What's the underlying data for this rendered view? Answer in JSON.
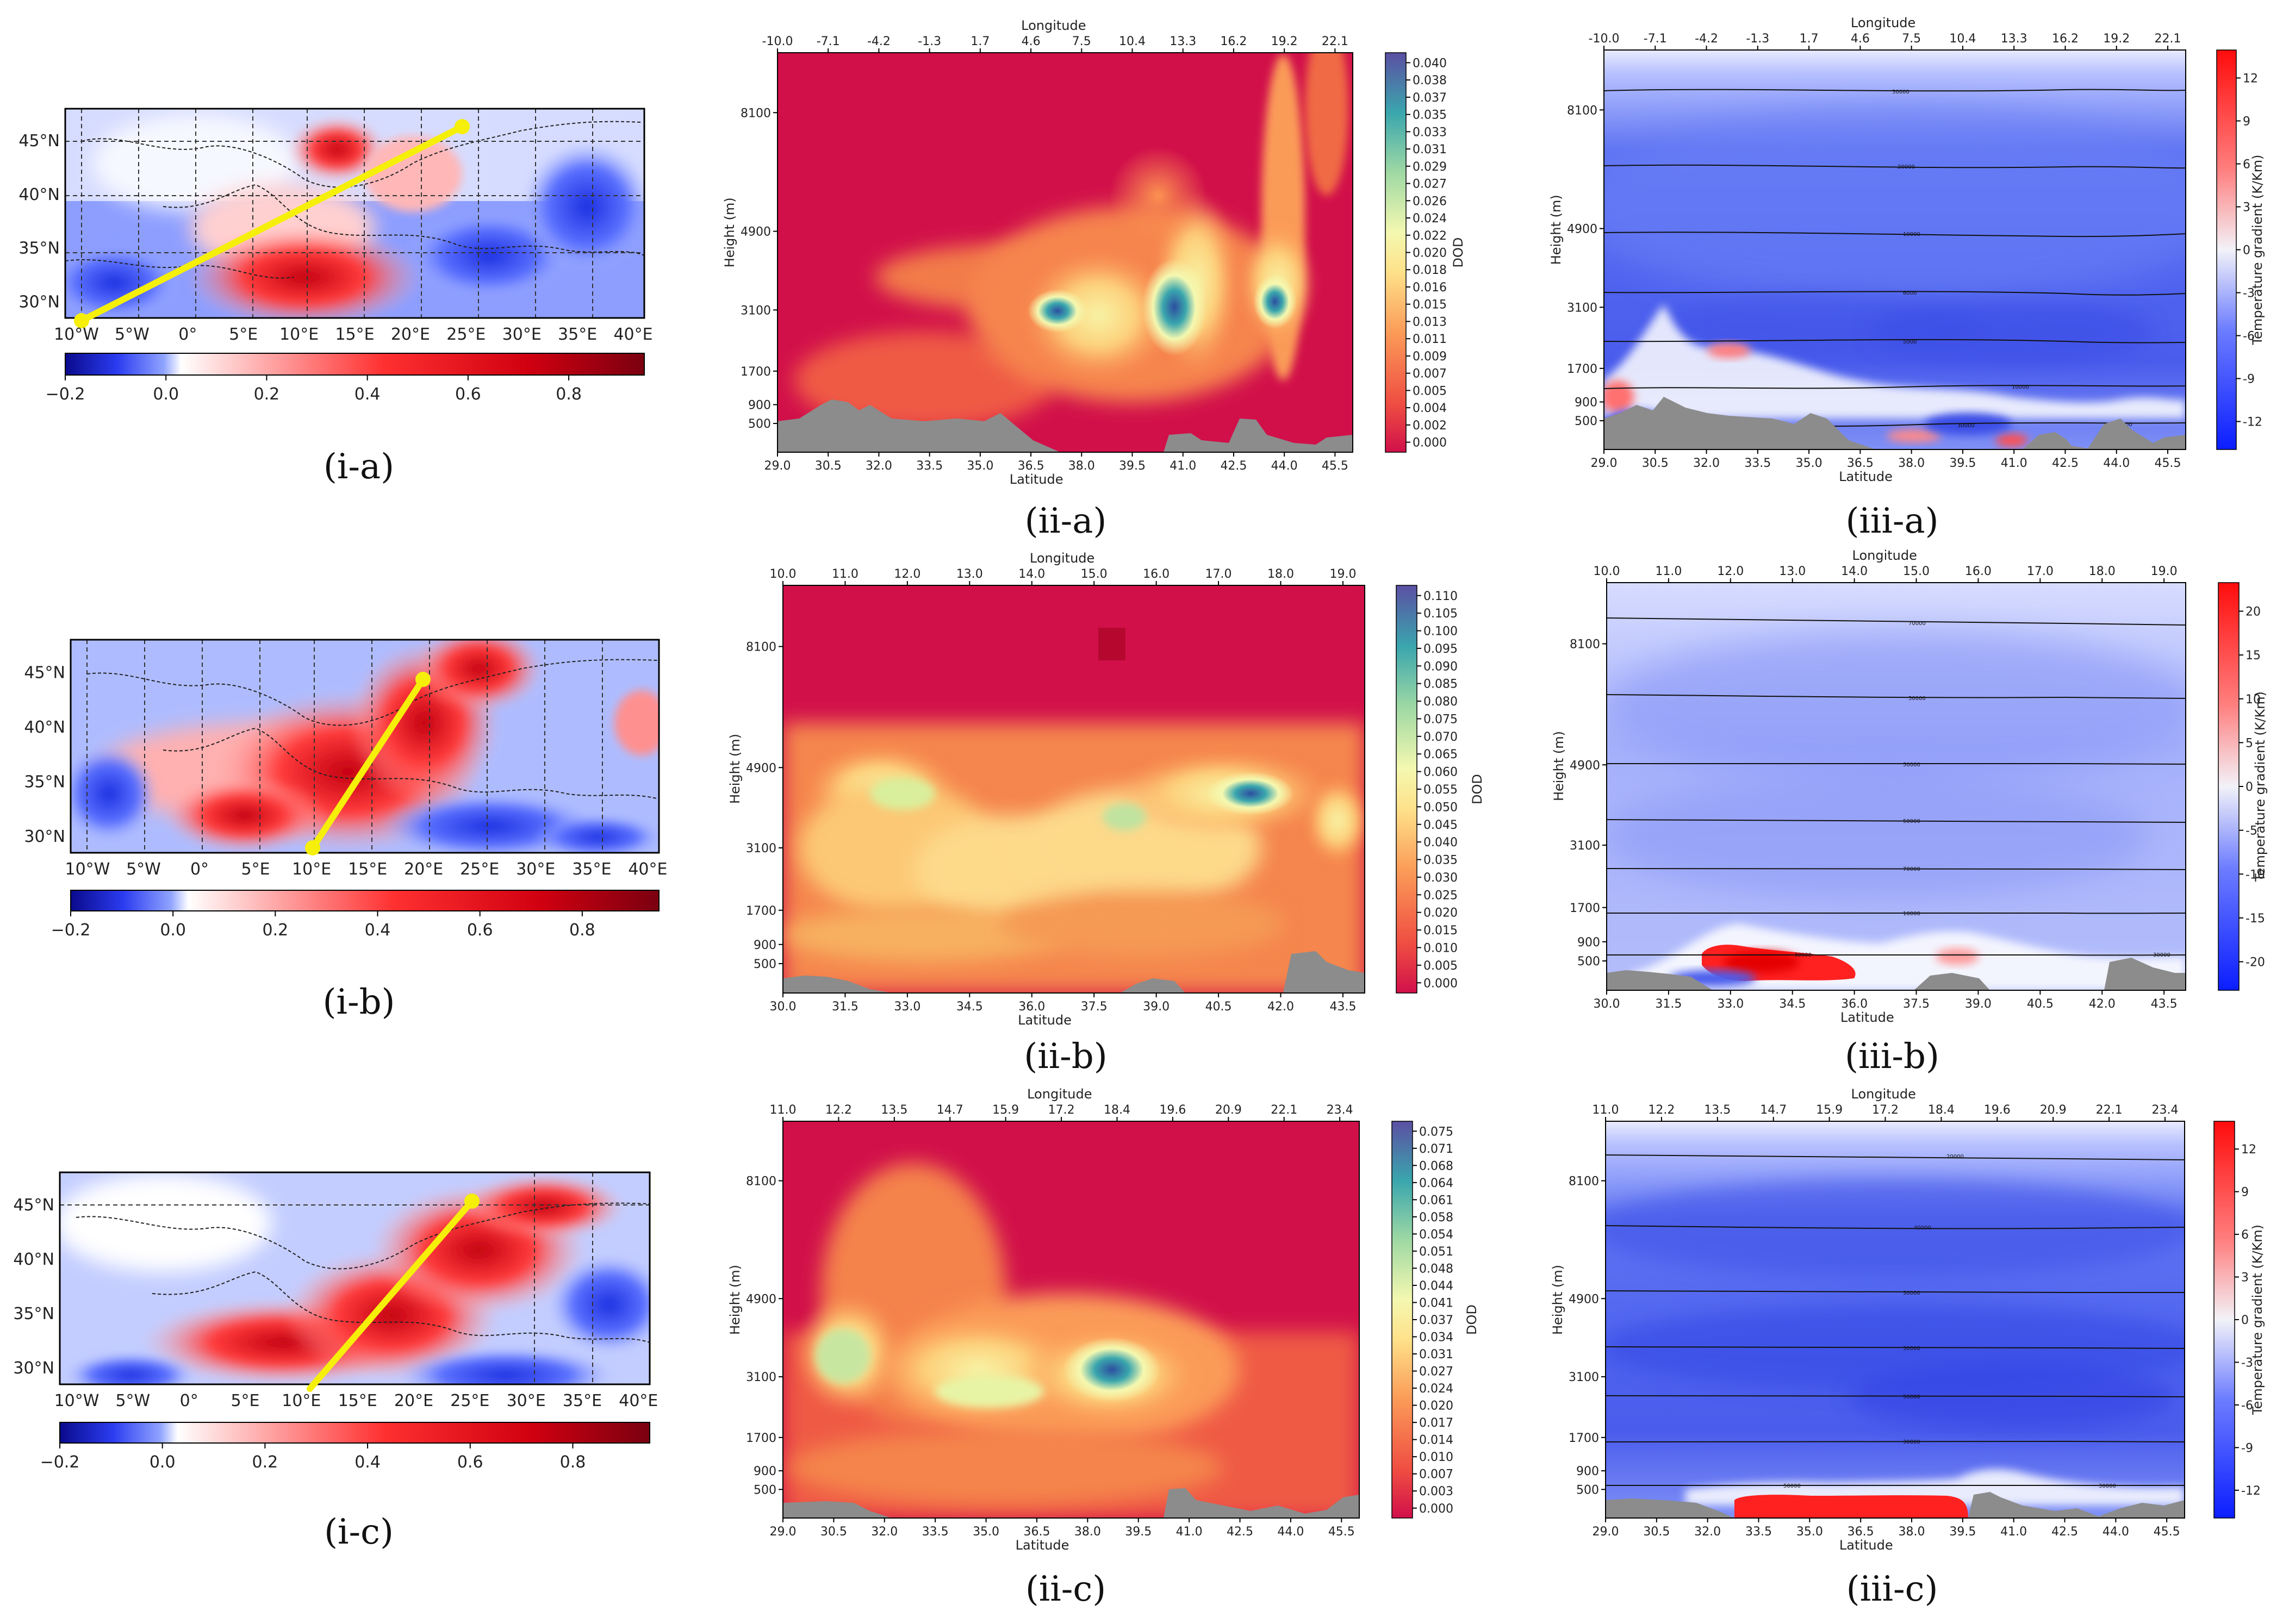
{
  "figure": {
    "captions": [
      "(i-a)",
      "(ii-a)",
      "(iii-a)",
      "(i-b)",
      "(ii-b)",
      "(iii-b)",
      "(i-c)",
      "(ii-c)",
      "(iii-c)"
    ]
  },
  "chart_data": [
    {
      "id": "i-a",
      "type": "heatmap",
      "caption": "(i-a)",
      "x_ticks": [
        "10°W",
        "5°W",
        "0°",
        "5°E",
        "10°E",
        "15°E",
        "20°E",
        "25°E",
        "30°E",
        "35°E",
        "40°E"
      ],
      "y_ticks": [
        "45°N",
        "40°N",
        "35°N",
        "30°N"
      ],
      "colorbar_ticks": [
        "−0.2",
        "0.0",
        "0.2",
        "0.4",
        "0.6",
        "0.8"
      ],
      "colorbar_range": [
        -0.2,
        0.95
      ],
      "transect": {
        "lon": [
          -10,
          25
        ],
        "lat": [
          29,
          46.5
        ]
      },
      "transect_color": "#f5ef0a"
    },
    {
      "id": "ii-a",
      "type": "heatmap",
      "caption": "(ii-a)",
      "value_label": "DOD",
      "top_axis_label": "Longitude",
      "top_ticks": [
        "-10.0",
        "-7.1",
        "-4.2",
        "-1.3",
        "1.7",
        "4.6",
        "7.5",
        "10.4",
        "13.3",
        "16.2",
        "19.2",
        "22.1"
      ],
      "xlabel": "Latitude",
      "x_ticks": [
        "29.0",
        "30.5",
        "32.0",
        "33.5",
        "35.0",
        "36.5",
        "38.0",
        "39.5",
        "41.0",
        "42.5",
        "44.0",
        "45.5"
      ],
      "ylabel": "Height (m)",
      "y_ticks": [
        "8100",
        "4900",
        "3100",
        "1700",
        "900",
        "500"
      ],
      "colorbar_ticks": [
        "0.040",
        "0.038",
        "0.037",
        "0.035",
        "0.033",
        "0.031",
        "0.029",
        "0.027",
        "0.026",
        "0.024",
        "0.022",
        "0.020",
        "0.018",
        "0.016",
        "0.015",
        "0.013",
        "0.011",
        "0.009",
        "0.007",
        "0.005",
        "0.004",
        "0.002",
        "0.000"
      ],
      "colorbar_range": [
        0,
        0.04
      ]
    },
    {
      "id": "iii-a",
      "type": "heatmap",
      "caption": "(iii-a)",
      "value_label": "Temperature gradient (K/Km)",
      "top_axis_label": "Longitude",
      "top_ticks": [
        "-10.0",
        "-7.1",
        "-4.2",
        "-1.3",
        "1.7",
        "4.6",
        "7.5",
        "10.4",
        "13.3",
        "16.2",
        "19.2",
        "22.1"
      ],
      "xlabel": "Latitude",
      "x_ticks": [
        "29.0",
        "30.5",
        "32.0",
        "33.5",
        "35.0",
        "36.5",
        "38.0",
        "39.5",
        "41.0",
        "42.5",
        "44.0",
        "45.5"
      ],
      "ylabel": "Height (m)",
      "y_ticks": [
        "8100",
        "4900",
        "3100",
        "1700",
        "900",
        "500"
      ],
      "colorbar_ticks": [
        "12",
        "9",
        "6",
        "3",
        "0",
        "-3",
        "-6",
        "-9",
        "-12"
      ],
      "colorbar_range": [
        -13,
        13
      ]
    },
    {
      "id": "i-b",
      "type": "heatmap",
      "caption": "(i-b)",
      "x_ticks": [
        "10°W",
        "5°W",
        "0°",
        "5°E",
        "10°E",
        "15°E",
        "20°E",
        "25°E",
        "30°E",
        "35°E",
        "40°E"
      ],
      "y_ticks": [
        "45°N",
        "40°N",
        "35°N",
        "30°N"
      ],
      "colorbar_ticks": [
        "−0.2",
        "0.0",
        "0.2",
        "0.4",
        "0.6",
        "0.8"
      ],
      "colorbar_range": [
        -0.2,
        0.95
      ],
      "transect": {
        "lon": [
          10,
          20
        ],
        "lat": [
          29.5,
          44.5
        ]
      },
      "transect_color": "#f5ef0a"
    },
    {
      "id": "ii-b",
      "type": "heatmap",
      "caption": "(ii-b)",
      "value_label": "DOD",
      "top_axis_label": "Longitude",
      "top_ticks": [
        "10.0",
        "11.0",
        "12.0",
        "13.0",
        "14.0",
        "15.0",
        "16.0",
        "17.0",
        "18.0",
        "19.0"
      ],
      "xlabel": "Latitude",
      "x_ticks": [
        "30.0",
        "31.5",
        "33.0",
        "34.5",
        "36.0",
        "37.5",
        "39.0",
        "40.5",
        "42.0",
        "43.5"
      ],
      "ylabel": "Height (m)",
      "y_ticks": [
        "8100",
        "4900",
        "3100",
        "1700",
        "900",
        "500"
      ],
      "colorbar_ticks": [
        "0.110",
        "0.105",
        "0.100",
        "0.095",
        "0.090",
        "0.085",
        "0.080",
        "0.075",
        "0.070",
        "0.065",
        "0.060",
        "0.055",
        "0.050",
        "0.045",
        "0.040",
        "0.035",
        "0.030",
        "0.025",
        "0.020",
        "0.015",
        "0.010",
        "0.005",
        "0.000"
      ],
      "colorbar_range": [
        0,
        0.11
      ]
    },
    {
      "id": "iii-b",
      "type": "heatmap",
      "caption": "(iii-b)",
      "value_label": "Temperature gradient (K/Km)",
      "top_axis_label": "Longitude",
      "top_ticks": [
        "10.0",
        "11.0",
        "12.0",
        "13.0",
        "14.0",
        "15.0",
        "16.0",
        "17.0",
        "18.0",
        "19.0"
      ],
      "xlabel": "Latitude",
      "x_ticks": [
        "30.0",
        "31.5",
        "33.0",
        "34.5",
        "36.0",
        "37.5",
        "39.0",
        "40.5",
        "42.0",
        "43.5"
      ],
      "ylabel": "Height (m)",
      "y_ticks": [
        "8100",
        "4900",
        "3100",
        "1700",
        "900",
        "500"
      ],
      "colorbar_ticks": [
        "20",
        "15",
        "10",
        "5",
        "0",
        "-5",
        "-10",
        "-15",
        "-20"
      ],
      "colorbar_range": [
        -22,
        22
      ]
    },
    {
      "id": "i-c",
      "type": "heatmap",
      "caption": "(i-c)",
      "x_ticks": [
        "10°W",
        "5°W",
        "0°",
        "5°E",
        "10°E",
        "15°E",
        "20°E",
        "25°E",
        "30°E",
        "35°E",
        "40°E"
      ],
      "y_ticks": [
        "45°N",
        "40°N",
        "35°N",
        "30°N"
      ],
      "colorbar_ticks": [
        "−0.2",
        "0.0",
        "0.2",
        "0.4",
        "0.6",
        "0.8"
      ],
      "colorbar_range": [
        -0.2,
        0.95
      ],
      "transect": {
        "lon": [
          10,
          25
        ],
        "lat": [
          29,
          45.5
        ]
      },
      "transect_color": "#f5ef0a"
    },
    {
      "id": "ii-c",
      "type": "heatmap",
      "caption": "(ii-c)",
      "value_label": "DOD",
      "top_axis_label": "Longitude",
      "top_ticks": [
        "11.0",
        "12.2",
        "13.5",
        "14.7",
        "15.9",
        "17.2",
        "18.4",
        "19.6",
        "20.9",
        "22.1",
        "23.4"
      ],
      "xlabel": "Latitude",
      "x_ticks": [
        "29.0",
        "30.5",
        "32.0",
        "33.5",
        "35.0",
        "36.5",
        "38.0",
        "39.5",
        "41.0",
        "42.5",
        "44.0",
        "45.5"
      ],
      "ylabel": "Height (m)",
      "y_ticks": [
        "8100",
        "4900",
        "3100",
        "1700",
        "900",
        "500"
      ],
      "colorbar_ticks": [
        "0.075",
        "0.071",
        "0.068",
        "0.064",
        "0.061",
        "0.058",
        "0.054",
        "0.051",
        "0.048",
        "0.044",
        "0.041",
        "0.037",
        "0.034",
        "0.031",
        "0.027",
        "0.024",
        "0.020",
        "0.017",
        "0.014",
        "0.010",
        "0.007",
        "0.003",
        "0.000"
      ],
      "colorbar_range": [
        0,
        0.075
      ]
    },
    {
      "id": "iii-c",
      "type": "heatmap",
      "caption": "(iii-c)",
      "value_label": "Temperature gradient (K/Km)",
      "top_axis_label": "Longitude",
      "top_ticks": [
        "11.0",
        "12.2",
        "13.5",
        "14.7",
        "15.9",
        "17.2",
        "18.4",
        "19.6",
        "20.9",
        "22.1",
        "23.4"
      ],
      "xlabel": "Latitude",
      "x_ticks": [
        "29.0",
        "30.5",
        "32.0",
        "33.5",
        "35.0",
        "36.5",
        "38.0",
        "39.5",
        "41.0",
        "42.5",
        "44.0",
        "45.5"
      ],
      "ylabel": "Height (m)",
      "y_ticks": [
        "8100",
        "4900",
        "3100",
        "1700",
        "900",
        "500"
      ],
      "colorbar_ticks": [
        "12",
        "9",
        "6",
        "3",
        "0",
        "-3",
        "-6",
        "-9",
        "-12"
      ],
      "colorbar_range": [
        -13,
        13
      ]
    }
  ]
}
